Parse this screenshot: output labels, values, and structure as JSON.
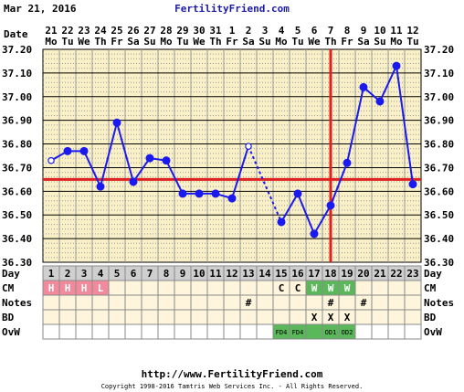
{
  "header": {
    "start_date": "Mar 21, 2016",
    "brand": "FertilityFriend.com",
    "date_row_label": "Date"
  },
  "footer": {
    "url": "http://www.FertilityFriend.com",
    "copyright": "Copyright 1998-2016 Tamtris Web Services Inc. - All Rights Reserved."
  },
  "colors": {
    "plot_bg": "#faf0c8",
    "line": "#1a1aee",
    "coverline": "#e02020",
    "grid": "#9a9a9a",
    "day_cell": "#cfcfcf",
    "menses": "#f28a9c",
    "fertile": "#5ab85a"
  },
  "chart_data": {
    "type": "line",
    "title": "",
    "ylabel": "",
    "ylim": [
      36.3,
      37.2
    ],
    "y_ticks": [
      "36.30",
      "36.40",
      "36.50",
      "36.60",
      "36.70",
      "36.80",
      "36.90",
      "37.00",
      "37.10",
      "37.20"
    ],
    "dates": [
      "21",
      "22",
      "23",
      "24",
      "25",
      "26",
      "27",
      "28",
      "29",
      "30",
      "31",
      "1",
      "2",
      "3",
      "4",
      "5",
      "6",
      "7",
      "8",
      "9",
      "10",
      "11",
      "12"
    ],
    "weekdays": [
      "Mo",
      "Tu",
      "We",
      "Th",
      "Fr",
      "Sa",
      "Su",
      "Mo",
      "Tu",
      "We",
      "Th",
      "Fr",
      "Sa",
      "Su",
      "Mo",
      "Tu",
      "We",
      "Th",
      "Fr",
      "Sa",
      "Su",
      "Mo",
      "Tu"
    ],
    "cycle_days": [
      "1",
      "2",
      "3",
      "4",
      "5",
      "6",
      "7",
      "8",
      "9",
      "10",
      "11",
      "12",
      "13",
      "14",
      "15",
      "16",
      "17",
      "18",
      "19",
      "20",
      "21",
      "22",
      "23"
    ],
    "series": [
      {
        "values": [
          36.73,
          36.77,
          36.77,
          36.62,
          36.89,
          36.64,
          36.74,
          36.73,
          36.59,
          36.59,
          36.59,
          36.57,
          36.79,
          null,
          36.47,
          36.59,
          36.42,
          36.54,
          36.72,
          37.04,
          36.98,
          37.13,
          36.63
        ],
        "open_points": [
          0,
          12
        ],
        "dashed_segments": [
          [
            12,
            14
          ]
        ]
      }
    ],
    "coverline": 36.65,
    "ovulation_day_index": 17,
    "rows": [
      {
        "label": "Day"
      },
      {
        "label": "CM",
        "cells": [
          "H",
          "H",
          "H",
          "L",
          "",
          "",
          "",
          "",
          "",
          "",
          "",
          "",
          "",
          "",
          "C",
          "C",
          "W",
          "W",
          "W",
          "",
          "",
          "",
          ""
        ]
      },
      {
        "label": "Notes",
        "cells": [
          "",
          "",
          "",
          "",
          "",
          "",
          "",
          "",
          "",
          "",
          "",
          "",
          "#",
          "",
          "",
          "",
          "",
          "#",
          "",
          "#",
          "",
          "",
          ""
        ]
      },
      {
        "label": "BD",
        "cells": [
          "",
          "",
          "",
          "",
          "",
          "",
          "",
          "",
          "",
          "",
          "",
          "",
          "",
          "",
          "",
          "",
          "X",
          "X",
          "X",
          "",
          "",
          "",
          ""
        ]
      },
      {
        "label": "OvW",
        "cells": [
          "",
          "",
          "",
          "",
          "",
          "",
          "",
          "",
          "",
          "",
          "",
          "",
          "",
          "",
          "FD4",
          "FD4",
          "",
          "OD1",
          "OD2",
          "",
          "",
          "",
          ""
        ]
      }
    ]
  }
}
